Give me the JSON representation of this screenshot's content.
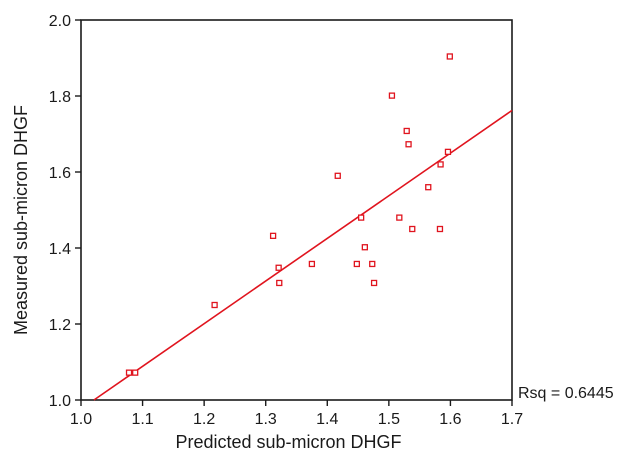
{
  "chart_data": {
    "type": "scatter",
    "xlabel": "Predicted sub-micron DHGF",
    "ylabel": "Measured sub-micron DHGF",
    "xlim": [
      1.0,
      1.7
    ],
    "ylim": [
      1.0,
      2.0
    ],
    "x_ticks": [
      "1.0",
      "1.1",
      "1.2",
      "1.3",
      "1.4",
      "1.5",
      "1.6",
      "1.7"
    ],
    "y_ticks": [
      "1.0",
      "1.2",
      "1.4",
      "1.6",
      "1.8",
      "2.0"
    ],
    "grid": false,
    "series": [
      {
        "points": [
          {
            "x": 1.078,
            "y": 1.072
          },
          {
            "x": 1.088,
            "y": 1.072
          },
          {
            "x": 1.217,
            "y": 1.25
          },
          {
            "x": 1.312,
            "y": 1.432
          },
          {
            "x": 1.321,
            "y": 1.348
          },
          {
            "x": 1.322,
            "y": 1.308
          },
          {
            "x": 1.375,
            "y": 1.358
          },
          {
            "x": 1.417,
            "y": 1.59
          },
          {
            "x": 1.448,
            "y": 1.358
          },
          {
            "x": 1.455,
            "y": 1.48
          },
          {
            "x": 1.461,
            "y": 1.402
          },
          {
            "x": 1.473,
            "y": 1.358
          },
          {
            "x": 1.476,
            "y": 1.308
          },
          {
            "x": 1.505,
            "y": 1.801
          },
          {
            "x": 1.517,
            "y": 1.48
          },
          {
            "x": 1.529,
            "y": 1.708
          },
          {
            "x": 1.532,
            "y": 1.673
          },
          {
            "x": 1.538,
            "y": 1.45
          },
          {
            "x": 1.564,
            "y": 1.56
          },
          {
            "x": 1.583,
            "y": 1.45
          },
          {
            "x": 1.584,
            "y": 1.62
          },
          {
            "x": 1.596,
            "y": 1.653
          },
          {
            "x": 1.599,
            "y": 1.904
          }
        ]
      }
    ],
    "fit_line": {
      "x": [
        1.021,
        1.7
      ],
      "y": [
        1.0,
        1.762
      ]
    },
    "annotation": "Rsq = 0.6445",
    "colors": {
      "points": "#e0141e",
      "fit_line": "#e0141e",
      "axes": "#1a1a1a"
    }
  }
}
